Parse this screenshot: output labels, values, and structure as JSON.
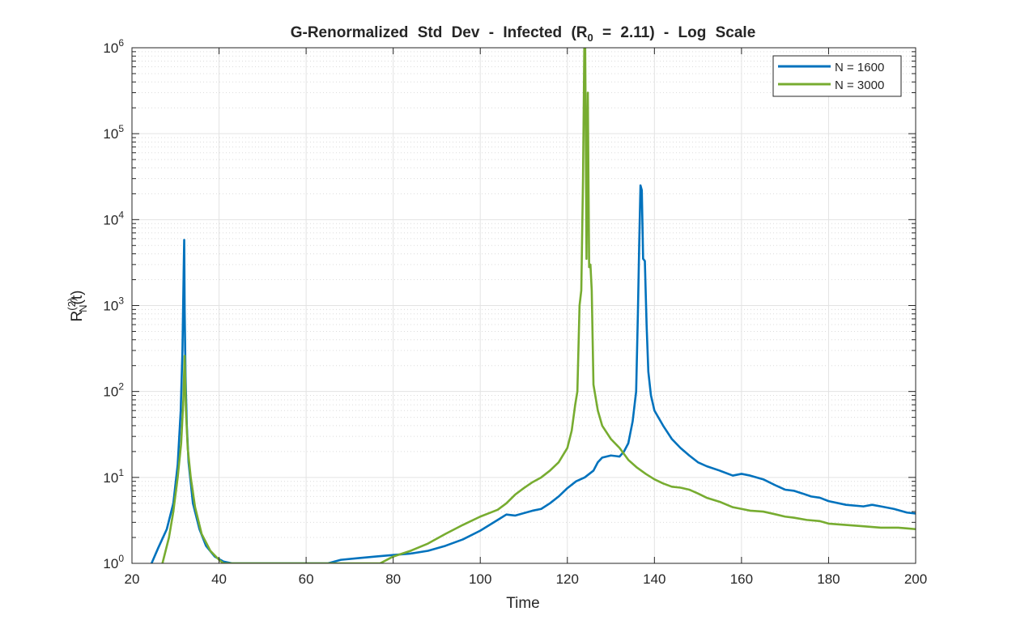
{
  "chart_data": {
    "type": "line",
    "title": "G-Renormalized Std Dev - Infected (R",
    "title_subscript": "0",
    "title_tail": " = 2.11) - Log Scale",
    "xlabel": "Time",
    "ylabel_base": "R",
    "ylabel_superscript": "(2)",
    "ylabel_subscript": "N",
    "ylabel_tail": "(t)",
    "xlim": [
      20,
      200
    ],
    "ylim": [
      1,
      1000000
    ],
    "yscale": "log",
    "grid": true,
    "minor_grid": true,
    "legend_position": "top-right",
    "x_ticks": [
      "20",
      "40",
      "60",
      "80",
      "100",
      "120",
      "140",
      "160",
      "180",
      "200"
    ],
    "y_ticks": [
      {
        "base": "10",
        "exp": "0"
      },
      {
        "base": "10",
        "exp": "1"
      },
      {
        "base": "10",
        "exp": "2"
      },
      {
        "base": "10",
        "exp": "3"
      },
      {
        "base": "10",
        "exp": "4"
      },
      {
        "base": "10",
        "exp": "5"
      },
      {
        "base": "10",
        "exp": "6"
      }
    ],
    "series": [
      {
        "name": "N = 1600",
        "color": "#0072BD",
        "x": [
          24.5,
          26,
          28,
          29.5,
          30.5,
          31.2,
          31.6,
          31.9,
          32.0,
          32.1,
          32.3,
          32.6,
          33,
          34,
          35.5,
          37,
          39,
          41,
          43,
          65,
          68,
          72,
          76,
          80,
          84,
          88,
          92,
          96,
          100,
          104,
          106,
          108,
          112,
          114,
          116,
          118,
          120,
          122,
          124,
          126,
          127,
          128,
          130,
          132,
          133,
          134,
          135,
          135.8,
          136.2,
          136.5,
          136.8,
          137.1,
          137.4,
          137.8,
          138.2,
          138.6,
          139.2,
          140,
          142,
          144,
          146,
          148,
          150,
          152,
          155,
          158,
          160,
          162,
          165,
          168,
          170,
          172,
          174,
          176,
          178,
          180,
          184,
          188,
          190,
          192,
          195,
          198,
          200
        ],
        "y": [
          1.0,
          1.5,
          2.5,
          5,
          14,
          60,
          300,
          3000,
          5800,
          900,
          150,
          40,
          15,
          5,
          2.5,
          1.6,
          1.2,
          1.05,
          1.0,
          1.0,
          1.1,
          1.15,
          1.2,
          1.25,
          1.3,
          1.4,
          1.6,
          1.9,
          2.4,
          3.2,
          3.7,
          3.6,
          4.1,
          4.3,
          5.0,
          6.0,
          7.5,
          9.0,
          10,
          12,
          15,
          17,
          18,
          17.5,
          20,
          25,
          45,
          100,
          800,
          5000,
          25000,
          22000,
          3500,
          3300,
          600,
          170,
          90,
          60,
          40,
          28,
          22,
          18,
          15,
          13.5,
          12,
          10.5,
          11,
          10.5,
          9.5,
          8.0,
          7.2,
          7.0,
          6.5,
          6.0,
          5.8,
          5.3,
          4.8,
          4.6,
          4.8,
          4.6,
          4.3,
          3.9,
          3.8
        ]
      },
      {
        "name": "N = 3000",
        "color": "#77AC30",
        "x": [
          27,
          28.5,
          29.5,
          30.5,
          31.3,
          31.8,
          32.1,
          32.4,
          32.8,
          33.5,
          34.5,
          36,
          38,
          40,
          41,
          77,
          80,
          84,
          88,
          92,
          96,
          100,
          104,
          106,
          108,
          110,
          112,
          114,
          116,
          118,
          120,
          121,
          121.8,
          122.3,
          122.8,
          123.2,
          123.6,
          123.9,
          124.1,
          124.4,
          124.7,
          125.0,
          125.3,
          125.6,
          126,
          127,
          128,
          130,
          132,
          134,
          136,
          138,
          140,
          142,
          144,
          146,
          148,
          150,
          152,
          155,
          158,
          160,
          162,
          165,
          168,
          170,
          172,
          175,
          178,
          180,
          184,
          188,
          192,
          196,
          198,
          200
        ],
        "y": [
          1.0,
          2.0,
          4.0,
          10,
          25,
          80,
          260,
          60,
          22,
          10,
          4.5,
          2.2,
          1.4,
          1.1,
          1.0,
          1.0,
          1.2,
          1.4,
          1.7,
          2.2,
          2.8,
          3.5,
          4.2,
          5.0,
          6.3,
          7.5,
          8.8,
          10,
          12,
          15,
          22,
          35,
          70,
          100,
          1000,
          1500,
          30000,
          1000000,
          1000000,
          3500,
          300000,
          2800,
          3000,
          1500,
          120,
          60,
          40,
          28,
          22,
          16,
          13,
          11,
          9.5,
          8.5,
          7.8,
          7.6,
          7.2,
          6.5,
          5.8,
          5.2,
          4.5,
          4.3,
          4.1,
          4.0,
          3.7,
          3.5,
          3.4,
          3.2,
          3.1,
          2.9,
          2.8,
          2.7,
          2.6,
          2.6,
          2.55,
          2.5
        ]
      }
    ]
  }
}
